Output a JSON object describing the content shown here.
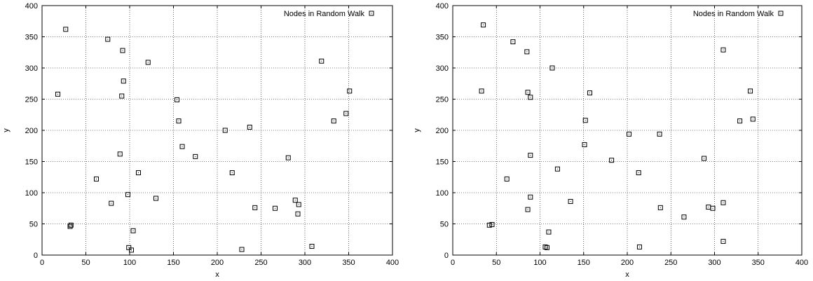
{
  "chart_data": [
    {
      "type": "scatter",
      "xlabel": "x",
      "ylabel": "y",
      "xlim": [
        0,
        400
      ],
      "ylim": [
        0,
        400
      ],
      "xticks": [
        0,
        50,
        100,
        150,
        200,
        250,
        300,
        350,
        400
      ],
      "yticks": [
        0,
        50,
        100,
        150,
        200,
        250,
        300,
        350,
        400
      ],
      "grid": true,
      "legend_position": "top-right",
      "series": [
        {
          "name": "Nodes in Random Walk",
          "marker": "square",
          "color": "#000000",
          "points": [
            [
              27,
              362
            ],
            [
              75,
              346
            ],
            [
              92,
              328
            ],
            [
              121,
              309
            ],
            [
              93,
              279
            ],
            [
              18,
              258
            ],
            [
              91,
              255
            ],
            [
              154,
              249
            ],
            [
              156,
              215
            ],
            [
              160,
              174
            ],
            [
              175,
              158
            ],
            [
              89,
              162
            ],
            [
              110,
              132
            ],
            [
              62,
              122
            ],
            [
              98,
              97
            ],
            [
              79,
              83
            ],
            [
              130,
              91
            ],
            [
              33,
              48
            ],
            [
              32,
              46
            ],
            [
              104,
              39
            ],
            [
              99,
              12
            ],
            [
              102,
              8
            ],
            [
              209,
              200
            ],
            [
              237,
              205
            ],
            [
              217,
              132
            ],
            [
              243,
              76
            ],
            [
              228,
              9
            ],
            [
              266,
              75
            ],
            [
              281,
              156
            ],
            [
              289,
              88
            ],
            [
              293,
              81
            ],
            [
              292,
              66
            ],
            [
              308,
              14
            ],
            [
              319,
              311
            ],
            [
              351,
              263
            ],
            [
              347,
              227
            ],
            [
              333,
              215
            ]
          ]
        }
      ]
    },
    {
      "type": "scatter",
      "xlabel": "x",
      "ylabel": "y",
      "xlim": [
        0,
        400
      ],
      "ylim": [
        0,
        400
      ],
      "xticks": [
        0,
        50,
        100,
        150,
        200,
        250,
        300,
        350,
        400
      ],
      "yticks": [
        0,
        50,
        100,
        150,
        200,
        250,
        300,
        350,
        400
      ],
      "grid": true,
      "legend_position": "top-right",
      "series": [
        {
          "name": "Nodes in Random Walk",
          "marker": "square",
          "color": "#000000",
          "points": [
            [
              35,
              369
            ],
            [
              69,
              342
            ],
            [
              85,
              326
            ],
            [
              114,
              300
            ],
            [
              33,
              263
            ],
            [
              86,
              261
            ],
            [
              89,
              253
            ],
            [
              157,
              260
            ],
            [
              152,
              216
            ],
            [
              151,
              177
            ],
            [
              182,
              152
            ],
            [
              89,
              160
            ],
            [
              120,
              138
            ],
            [
              62,
              122
            ],
            [
              89,
              93
            ],
            [
              86,
              73
            ],
            [
              135,
              86
            ],
            [
              42,
              48
            ],
            [
              45,
              49
            ],
            [
              110,
              37
            ],
            [
              106,
              13
            ],
            [
              108,
              12
            ],
            [
              202,
              194
            ],
            [
              237,
              194
            ],
            [
              213,
              132
            ],
            [
              238,
              76
            ],
            [
              214,
              13
            ],
            [
              265,
              61
            ],
            [
              288,
              155
            ],
            [
              293,
              77
            ],
            [
              298,
              75
            ],
            [
              310,
              84
            ],
            [
              310,
              22
            ],
            [
              310,
              329
            ],
            [
              341,
              263
            ],
            [
              344,
              218
            ],
            [
              329,
              215
            ]
          ]
        }
      ]
    }
  ]
}
